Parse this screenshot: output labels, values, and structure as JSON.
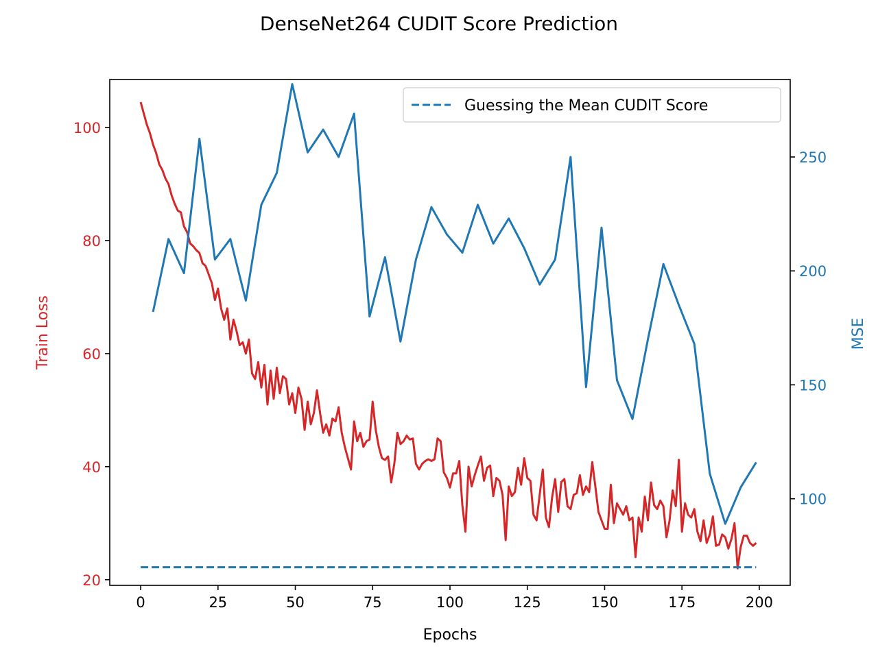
{
  "chart_data": {
    "type": "line",
    "title": "DenseNet264 CUDIT Score Prediction",
    "xlabel": "Epochs",
    "ylabel_left": "Train Loss",
    "ylabel_right": "MSE",
    "xlim": [
      -10,
      210
    ],
    "ylim_left": [
      19,
      108.5
    ],
    "ylim_right": [
      62,
      284
    ],
    "x_ticks": [
      0,
      25,
      50,
      75,
      100,
      125,
      150,
      175,
      200
    ],
    "y_ticks_left": [
      20,
      40,
      60,
      80,
      100
    ],
    "y_ticks_right": [
      100,
      150,
      200,
      250
    ],
    "colors": {
      "train_loss": "#d62728",
      "mse": "#1f77b4",
      "mean_guess": "#1f77b4"
    },
    "legend": {
      "position": "top-right",
      "entries": [
        "Guessing the Mean CUDIT Score"
      ]
    },
    "grid": false,
    "series": [
      {
        "axis": "left",
        "style": "solid",
        "x_start": 0,
        "x_step": 1,
        "values": [
          104.5,
          102.5,
          100.5,
          99.0,
          97.0,
          95.5,
          93.5,
          92.5,
          91.0,
          90.0,
          88.0,
          86.5,
          85.3,
          85.0,
          82.5,
          81.5,
          79.5,
          79.0,
          78.3,
          77.8,
          76.0,
          75.5,
          74.0,
          72.5,
          69.5,
          71.5,
          68.0,
          66.0,
          68.0,
          62.5,
          66.0,
          64.0,
          61.5,
          62.0,
          60.0,
          62.5,
          56.5,
          55.5,
          58.5,
          54.0,
          58.0,
          51.0,
          57.0,
          52.0,
          57.5,
          53.0,
          56.0,
          55.5,
          51.0,
          53.0,
          49.5,
          54.0,
          52.0,
          46.5,
          51.5,
          47.5,
          49.5,
          53.5,
          49.5,
          46.0,
          47.5,
          45.5,
          48.5,
          48.0,
          50.5,
          46.0,
          43.5,
          41.5,
          39.5,
          48.0,
          44.5,
          46.0,
          43.5,
          44.5,
          44.8,
          51.5,
          46.5,
          43.5,
          41.5,
          41.2,
          41.8,
          37.2,
          40.5,
          46.0,
          44.0,
          44.5,
          45.5,
          44.8,
          45.0,
          40.5,
          39.5,
          40.5,
          41.0,
          41.3,
          41.0,
          41.3,
          45.0,
          44.5,
          39.0,
          38.0,
          36.3,
          38.8,
          38.8,
          41.0,
          33.2,
          28.5,
          40.0,
          36.5,
          38.5,
          40.2,
          41.8,
          37.5,
          39.8,
          40.2,
          34.8,
          38.0,
          37.5,
          35.0,
          27.0,
          36.5,
          34.8,
          35.5,
          39.8,
          36.8,
          41.5,
          38.0,
          37.5,
          31.5,
          30.5,
          35.0,
          39.5,
          31.0,
          29.3,
          34.5,
          37.8,
          32.0,
          37.3,
          37.8,
          33.0,
          32.5,
          35.0,
          35.3,
          38.5,
          35.0,
          36.5,
          35.5,
          40.8,
          36.5,
          32.0,
          30.5,
          29.0,
          29.0,
          36.8,
          30.0,
          33.5,
          32.5,
          31.5,
          33.0,
          30.5,
          31.0,
          24.0,
          31.0,
          28.5,
          34.7,
          30.5,
          37.2,
          33.2,
          32.5,
          34.0,
          33.0,
          27.5,
          30.5,
          35.8,
          33.0,
          41.2,
          28.5,
          33.5,
          31.5,
          31.0,
          32.5,
          28.5,
          26.8,
          30.5,
          26.5,
          28.0,
          31.2,
          26.0,
          26.2,
          28.0,
          27.5,
          25.5,
          27.2,
          30.0,
          22.0,
          25.8,
          27.8,
          27.8,
          26.5,
          26.0,
          26.5
        ]
      },
      {
        "axis": "right",
        "style": "solid",
        "x": [
          4,
          9,
          14,
          19,
          24,
          29,
          34,
          39,
          44,
          49,
          54,
          59,
          64,
          69,
          74,
          79,
          84,
          89,
          94,
          99,
          104,
          109,
          114,
          119,
          124,
          129,
          134,
          139,
          144,
          149,
          154,
          159,
          164,
          169,
          174,
          179,
          184,
          189,
          194,
          199
        ],
        "values": [
          182,
          214,
          199,
          258,
          205,
          214,
          187,
          229,
          243,
          282,
          252,
          262,
          250,
          269,
          180,
          206,
          169,
          205,
          228,
          216,
          208,
          229,
          212,
          223,
          210,
          194,
          205,
          250,
          149,
          219,
          152,
          135,
          170,
          203,
          185,
          168,
          111,
          89,
          105,
          116
        ]
      },
      {
        "name": "Guessing the Mean CUDIT Score",
        "axis": "left",
        "style": "dashed",
        "x": [
          0,
          199
        ],
        "values": [
          22.2,
          22.2
        ]
      }
    ]
  }
}
